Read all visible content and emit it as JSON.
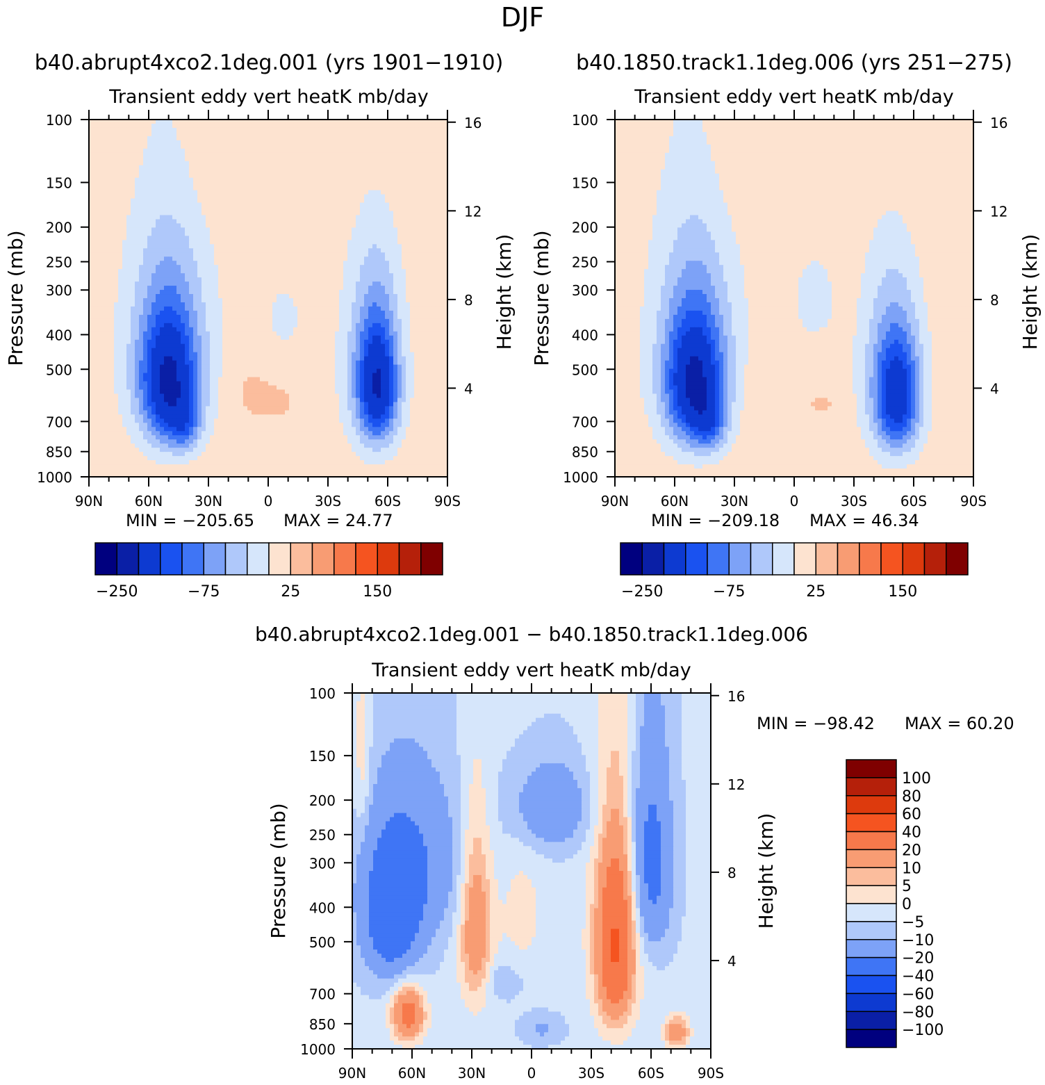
{
  "page_title": "DJF",
  "chart_data": [
    {
      "type": "heatmap",
      "title": "b40.abrupt4xco2.1deg.001 (yrs 1901−1910)",
      "subtitle": "Transient eddy vert heatK mb/day",
      "ylabel": "Pressure (mb)",
      "ylabel_right": "Height (km)",
      "x_ticks": [
        "90N",
        "60N",
        "30N",
        "0",
        "30S",
        "60S",
        "90S"
      ],
      "x_values": [
        90,
        60,
        30,
        0,
        -30,
        -60,
        -90
      ],
      "y_ticks": [
        "100",
        "150",
        "200",
        "250",
        "300",
        "400",
        "500",
        "700",
        "850",
        "1000"
      ],
      "y_values": [
        100,
        150,
        200,
        250,
        300,
        400,
        500,
        700,
        850,
        1000
      ],
      "y_right_ticks": [
        "4",
        "8",
        "12",
        "16"
      ],
      "ylim": [
        1000,
        100
      ],
      "min_label": "MIN = −205.65",
      "max_label": "MAX =  24.77",
      "min": -205.65,
      "max": 24.77,
      "legend_ticks": [
        "−250",
        "−75",
        "25",
        "150"
      ],
      "colors": [
        "#00007f",
        "#0a1fa6",
        "#0d3ad1",
        "#1a52f0",
        "#3f75f5",
        "#7da2f7",
        "#afc8fa",
        "#d6e6fb",
        "#fde3d0",
        "#fbbd9d",
        "#f89c73",
        "#f7794b",
        "#f55420",
        "#dd3a0d",
        "#b5200a",
        "#7f0000"
      ],
      "blobs": [
        {
          "lat": 50,
          "p": 550,
          "dlat": 14,
          "dp": 230,
          "val": -160
        },
        {
          "lat": 42,
          "p": 720,
          "dlat": 8,
          "dp": 120,
          "val": -60
        },
        {
          "lat": 50,
          "p": 420,
          "dlat": 24,
          "dp": 330,
          "val": -55
        },
        {
          "lat": -55,
          "p": 560,
          "dlat": 10,
          "dp": 220,
          "val": -150
        },
        {
          "lat": -52,
          "p": 480,
          "dlat": 16,
          "dp": 320,
          "val": -55
        },
        {
          "lat": 10,
          "p": 570,
          "dlat": 13,
          "dp": 140,
          "val": 12
        },
        {
          "lat": -5,
          "p": 620,
          "dlat": 12,
          "dp": 70,
          "val": 10
        },
        {
          "lat": 35,
          "p": 110,
          "dlat": 30,
          "dp": 90,
          "val": 10
        },
        {
          "lat": -45,
          "p": 120,
          "dlat": 28,
          "dp": 80,
          "val": 10
        },
        {
          "lat": -8,
          "p": 360,
          "dlat": 12,
          "dp": 110,
          "val": -22
        },
        {
          "lat": 84,
          "p": 150,
          "dlat": 5,
          "dp": 80,
          "val": 8
        }
      ]
    },
    {
      "type": "heatmap",
      "title": "b40.1850.track1.1deg.006 (yrs 251−275)",
      "subtitle": "Transient eddy vert heatK mb/day",
      "ylabel": "Pressure (mb)",
      "ylabel_right": "Height (km)",
      "x_ticks": [
        "90N",
        "60N",
        "30N",
        "0",
        "30S",
        "60S",
        "90S"
      ],
      "x_values": [
        90,
        60,
        30,
        0,
        -30,
        -60,
        -90
      ],
      "y_ticks": [
        "100",
        "150",
        "200",
        "250",
        "300",
        "400",
        "500",
        "700",
        "850",
        "1000"
      ],
      "y_values": [
        100,
        150,
        200,
        250,
        300,
        400,
        500,
        700,
        850,
        1000
      ],
      "y_right_ticks": [
        "4",
        "8",
        "12",
        "16"
      ],
      "ylim": [
        1000,
        100
      ],
      "min_label": "MIN = −209.18",
      "max_label": "MAX =  46.34",
      "min": -209.18,
      "max": 46.34,
      "legend_ticks": [
        "−250",
        "−75",
        "25",
        "150"
      ],
      "colors": [
        "#00007f",
        "#0a1fa6",
        "#0d3ad1",
        "#1a52f0",
        "#3f75f5",
        "#7da2f7",
        "#afc8fa",
        "#d6e6fb",
        "#fde3d0",
        "#fbbd9d",
        "#f89c73",
        "#f7794b",
        "#f55420",
        "#dd3a0d",
        "#b5200a",
        "#7f0000"
      ],
      "blobs": [
        {
          "lat": 50,
          "p": 560,
          "dlat": 14,
          "dp": 230,
          "val": -165
        },
        {
          "lat": 42,
          "p": 720,
          "dlat": 8,
          "dp": 120,
          "val": -60
        },
        {
          "lat": 50,
          "p": 420,
          "dlat": 24,
          "dp": 330,
          "val": -55
        },
        {
          "lat": -52,
          "p": 600,
          "dlat": 11,
          "dp": 220,
          "val": -135
        },
        {
          "lat": -48,
          "p": 500,
          "dlat": 16,
          "dp": 320,
          "val": -55
        },
        {
          "lat": 15,
          "p": 580,
          "dlat": 13,
          "dp": 130,
          "val": 12
        },
        {
          "lat": -15,
          "p": 630,
          "dlat": 12,
          "dp": 60,
          "val": 10
        },
        {
          "lat": 30,
          "p": 110,
          "dlat": 28,
          "dp": 90,
          "val": 10
        },
        {
          "lat": -50,
          "p": 120,
          "dlat": 26,
          "dp": 90,
          "val": 10
        },
        {
          "lat": -10,
          "p": 320,
          "dlat": 12,
          "dp": 100,
          "val": -28
        },
        {
          "lat": 86,
          "p": 150,
          "dlat": 4,
          "dp": 80,
          "val": -4
        }
      ]
    },
    {
      "type": "heatmap",
      "title": "b40.abrupt4xco2.1deg.001 − b40.1850.track1.1deg.006",
      "subtitle": "Transient eddy vert heatK mb/day",
      "ylabel": "Pressure (mb)",
      "ylabel_right": "Height (km)",
      "x_ticks": [
        "90N",
        "60N",
        "30N",
        "0",
        "30S",
        "60S",
        "90S"
      ],
      "x_values": [
        90,
        60,
        30,
        0,
        -30,
        -60,
        -90
      ],
      "y_ticks": [
        "100",
        "150",
        "200",
        "250",
        "300",
        "400",
        "500",
        "700",
        "850",
        "1000"
      ],
      "y_values": [
        100,
        150,
        200,
        250,
        300,
        400,
        500,
        700,
        850,
        1000
      ],
      "y_right_ticks": [
        "4",
        "8",
        "12",
        "16"
      ],
      "ylim": [
        1000,
        100
      ],
      "min_label": "MIN = −98.42",
      "max_label": "MAX =  60.20",
      "min": -98.42,
      "max": 60.2,
      "legend_ticks": [
        "100",
        "80",
        "60",
        "40",
        "20",
        "10",
        "5",
        "0",
        "−5",
        "−10",
        "−20",
        "−40",
        "−60",
        "−80",
        "−100"
      ],
      "colors": [
        "#00007f",
        "#0a1fa6",
        "#0d3ad1",
        "#1a52f0",
        "#3f75f5",
        "#7da2f7",
        "#afc8fa",
        "#d6e6fb",
        "#fde3d0",
        "#fbbd9d",
        "#f89c73",
        "#f7794b",
        "#f55420",
        "#dd3a0d",
        "#b5200a",
        "#7f0000"
      ],
      "blobs": [
        {
          "lat": -42,
          "p": 520,
          "dlat": 8,
          "dp": 260,
          "val": 35
        },
        {
          "lat": -42,
          "p": 480,
          "dlat": 14,
          "dp": 380,
          "val": 12
        },
        {
          "lat": 28,
          "p": 460,
          "dlat": 8,
          "dp": 260,
          "val": 22
        },
        {
          "lat": 62,
          "p": 800,
          "dlat": 8,
          "dp": 140,
          "val": 30
        },
        {
          "lat": 5,
          "p": 420,
          "dlat": 12,
          "dp": 180,
          "val": 6
        },
        {
          "lat": 70,
          "p": 430,
          "dlat": 14,
          "dp": 180,
          "val": -28
        },
        {
          "lat": 58,
          "p": 300,
          "dlat": 24,
          "dp": 160,
          "val": -14
        },
        {
          "lat": -60,
          "p": 300,
          "dlat": 10,
          "dp": 200,
          "val": -22
        },
        {
          "lat": -10,
          "p": 210,
          "dlat": 20,
          "dp": 60,
          "val": -14
        },
        {
          "lat": 15,
          "p": 640,
          "dlat": 10,
          "dp": 80,
          "val": -6
        },
        {
          "lat": -5,
          "p": 880,
          "dlat": 10,
          "dp": 80,
          "val": -7
        },
        {
          "lat": 85,
          "p": 150,
          "dlat": 4,
          "dp": 90,
          "val": 8
        },
        {
          "lat": -73,
          "p": 900,
          "dlat": 6,
          "dp": 90,
          "val": 22
        }
      ]
    }
  ]
}
